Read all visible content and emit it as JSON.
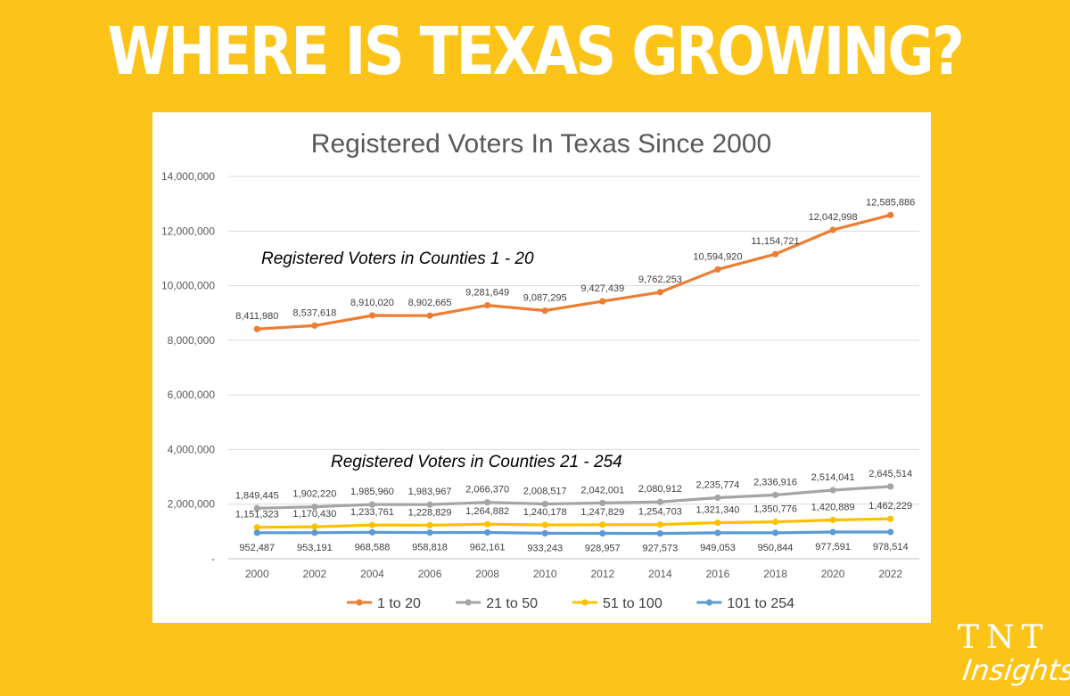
{
  "headline": "WHERE IS TEXAS GROWING?",
  "brand": {
    "line1": "TNT",
    "line2": "Insights"
  },
  "chart_data": {
    "type": "line",
    "title": "Registered Voters In Texas Since 2000",
    "x": [
      "2000",
      "2002",
      "2004",
      "2006",
      "2008",
      "2010",
      "2012",
      "2014",
      "2016",
      "2018",
      "2020",
      "2022"
    ],
    "ylim": [
      0,
      14000000
    ],
    "yticks": [
      0,
      2000000,
      4000000,
      6000000,
      8000000,
      10000000,
      12000000,
      14000000
    ],
    "ytick_labels": [
      "-",
      "2,000,000",
      "4,000,000",
      "6,000,000",
      "8,000,000",
      "10,000,000",
      "12,000,000",
      "14,000,000"
    ],
    "grid": true,
    "legend_position": "bottom",
    "annotations": [
      {
        "text": "Registered Voters in Counties 1 - 20",
        "near": "above top series"
      },
      {
        "text": "Registered Voters in Counties 21 - 254",
        "near": "above lower series"
      }
    ],
    "series": [
      {
        "name": "1 to 20",
        "color": "#ED7D31",
        "label_side": "above",
        "values": [
          8411980,
          8537618,
          8910020,
          8902665,
          9281649,
          9087295,
          9427439,
          9762253,
          10594920,
          11154721,
          12042998,
          12585886
        ],
        "labels": [
          "8,411,980",
          "8,537,618",
          "8,910,020",
          "8,902,665",
          "9,281,649",
          "9,087,295",
          "9,427,439",
          "9,762,253",
          "10,594,920",
          "11,154,721",
          "12,042,998",
          "12,585,886"
        ]
      },
      {
        "name": "21 to 50",
        "color": "#A5A5A5",
        "label_side": "above",
        "values": [
          1849445,
          1902220,
          1985960,
          1983967,
          2066370,
          2008517,
          2042001,
          2080912,
          2235774,
          2336916,
          2514041,
          2645514
        ],
        "labels": [
          "1,849,445",
          "1,902,220",
          "1,985,960",
          "1,983,967",
          "2,066,370",
          "2,008,517",
          "2,042,001",
          "2,080,912",
          "2,235,774",
          "2,336,916",
          "2,514,041",
          "2,645,514"
        ]
      },
      {
        "name": "51 to 100",
        "color": "#FFC000",
        "label_side": "above",
        "values": [
          1151323,
          1170430,
          1233761,
          1228829,
          1264882,
          1240178,
          1247829,
          1254703,
          1321340,
          1350776,
          1420889,
          1462229
        ],
        "labels": [
          "1,151,323",
          "1,170,430",
          "1,233,761",
          "1,228,829",
          "1,264,882",
          "1,240,178",
          "1,247,829",
          "1,254,703",
          "1,321,340",
          "1,350,776",
          "1,420,889",
          "1,462,229"
        ]
      },
      {
        "name": "101 to 254",
        "color": "#5B9BD5",
        "label_side": "below",
        "values": [
          952487,
          953191,
          968588,
          958818,
          962161,
          933243,
          928957,
          927573,
          949053,
          950844,
          977591,
          978514
        ],
        "labels": [
          "952,487",
          "953,191",
          "968,588",
          "958,818",
          "962,161",
          "933,243",
          "928,957",
          "927,573",
          "949,053",
          "950,844",
          "977,591",
          "978,514"
        ]
      }
    ]
  }
}
